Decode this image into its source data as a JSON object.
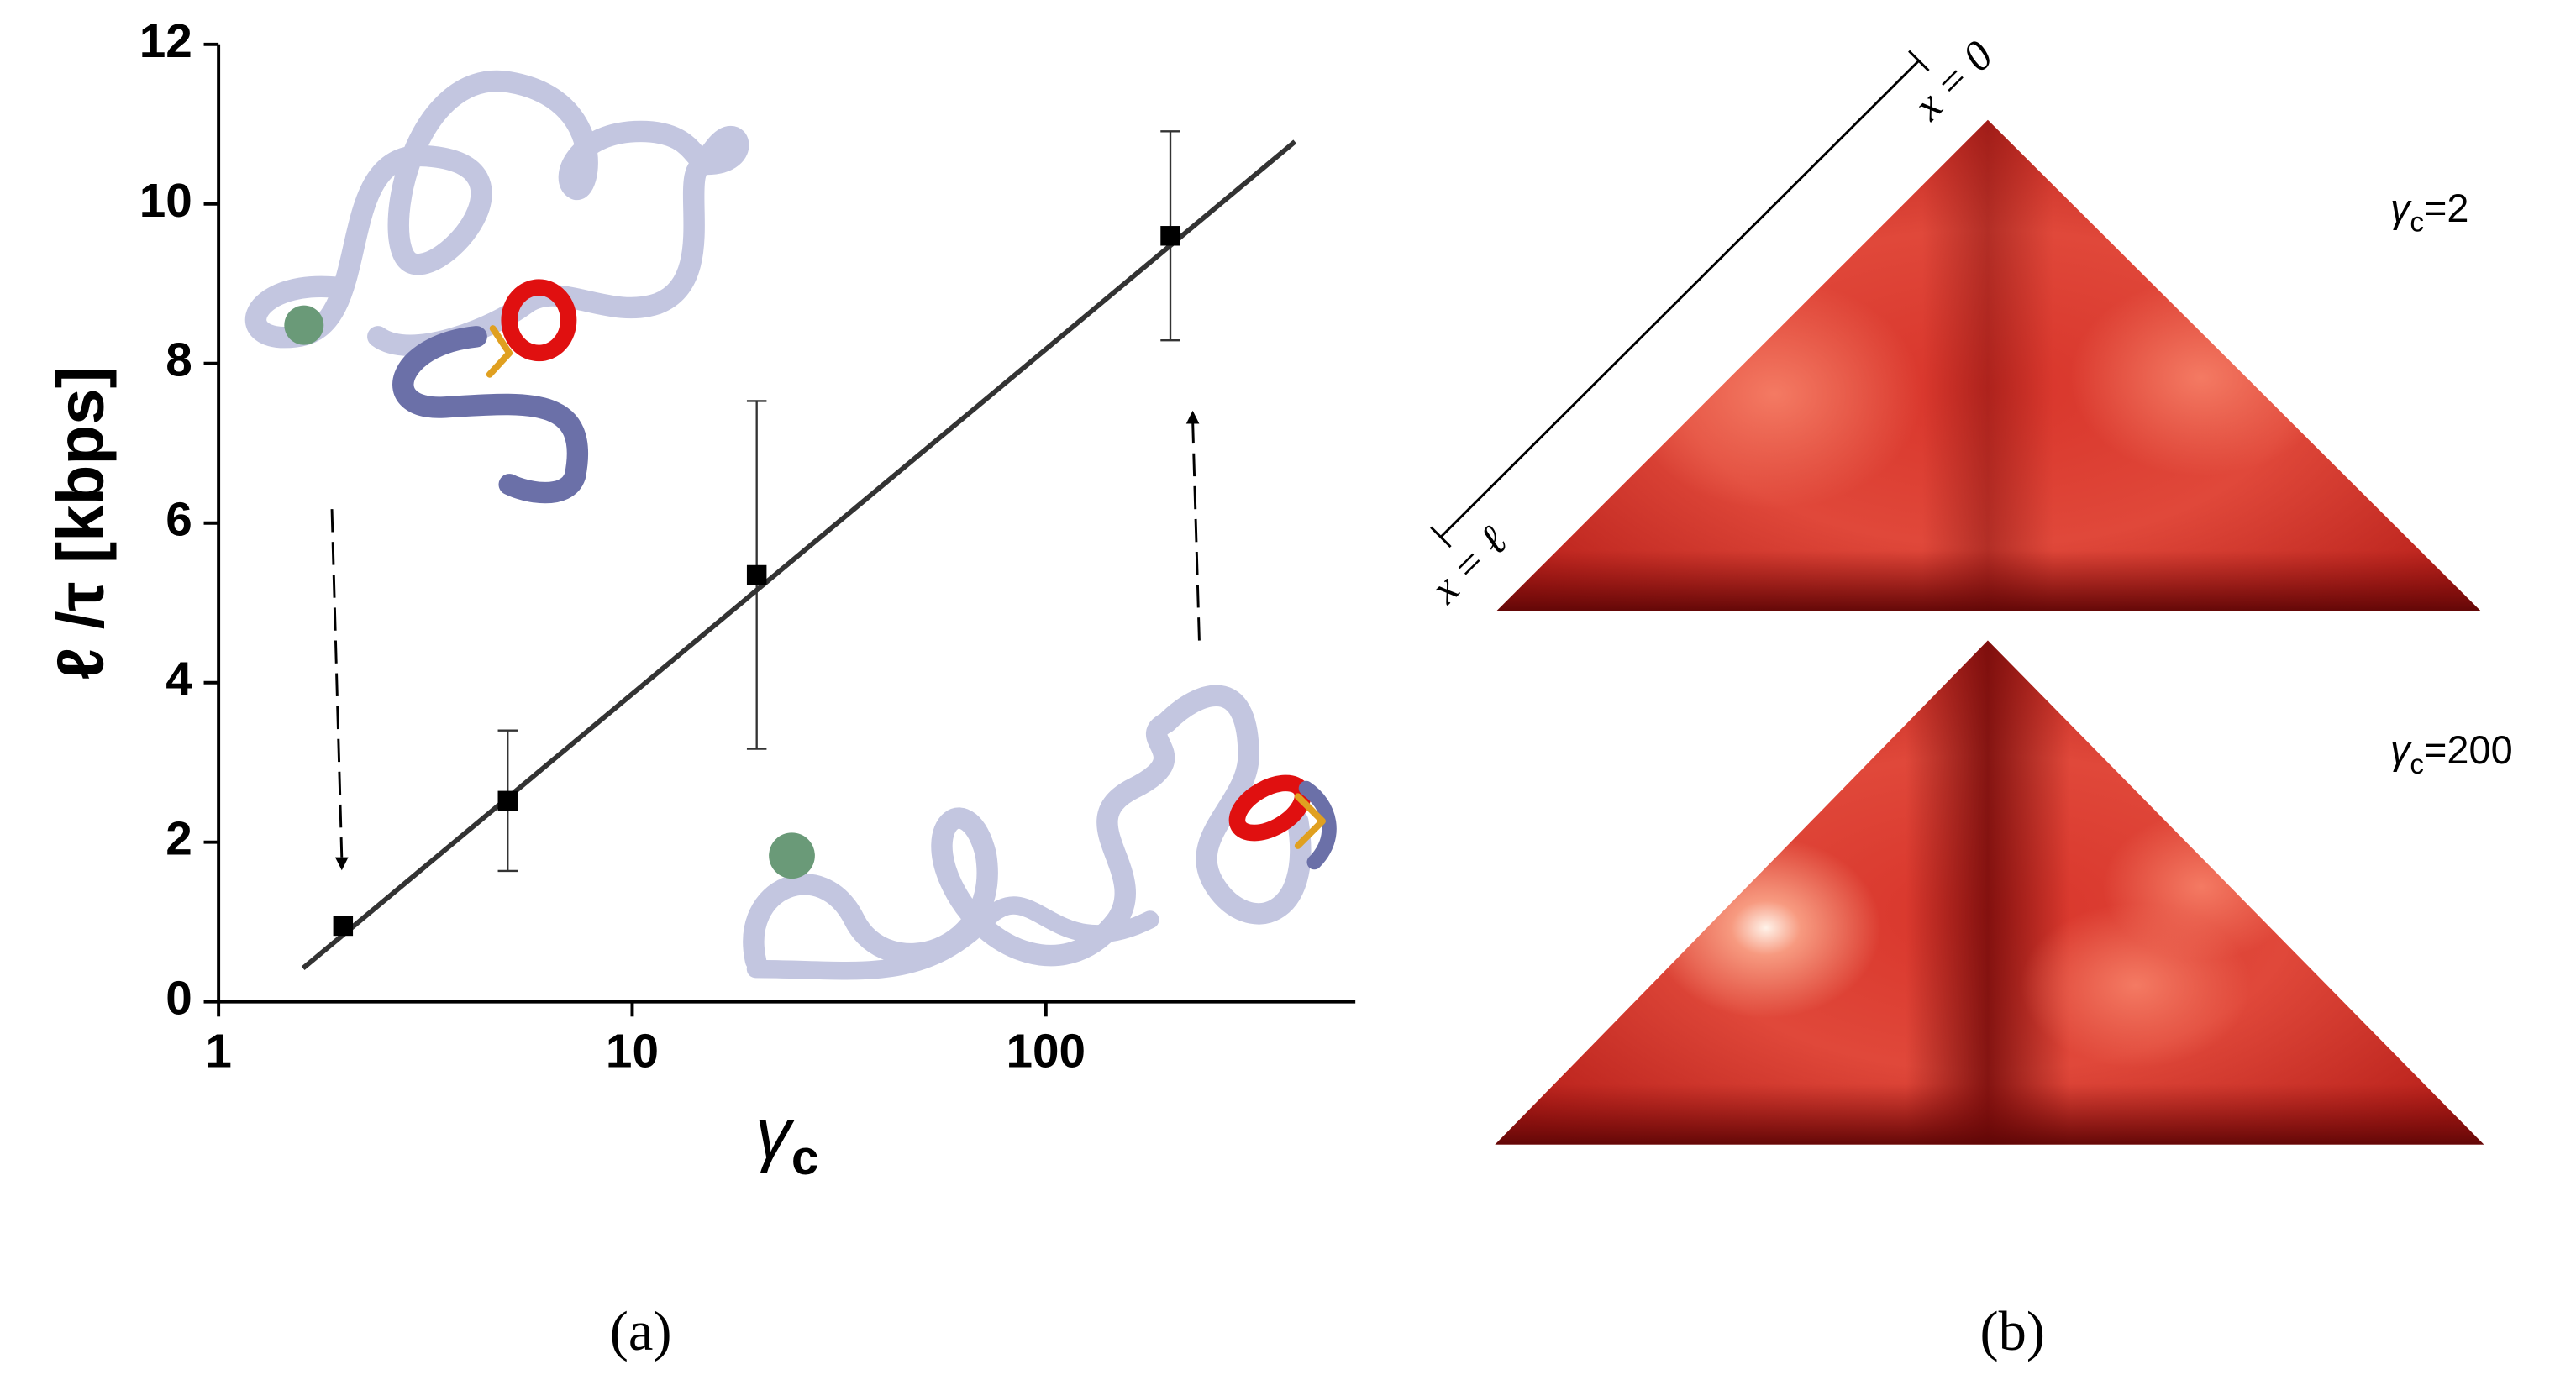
{
  "chart_data": {
    "type": "scatter",
    "x_label": {
      "symbol": "γ",
      "subscript": "c"
    },
    "y_label": "ℓ /τ [kbps]",
    "x": [
      2,
      5,
      20,
      200
    ],
    "values": [
      0.95,
      2.52,
      5.35,
      9.6
    ],
    "errors": [
      0,
      0.88,
      2.18,
      1.31
    ],
    "fit": {
      "x": [
        1.6,
        400
      ],
      "values": [
        0.42,
        10.78
      ]
    },
    "xlim": [
      1,
      560
    ],
    "ylim": [
      0,
      12
    ],
    "xticks": [
      1,
      10,
      100
    ],
    "yticks": [
      0,
      2,
      4,
      6,
      8,
      10,
      12
    ],
    "xscale": "log",
    "color": "#000000",
    "fit_color": "#333333"
  },
  "panel_b": {
    "axis_labels": [
      "x = 0",
      "x = ℓ"
    ],
    "heatmaps": [
      {
        "symbol": "γ",
        "subscript": "c",
        "text": "=2"
      },
      {
        "symbol": "γ",
        "subscript": "c",
        "text": "=200"
      }
    ]
  },
  "panel_labels": [
    "(a)",
    "(b)"
  ]
}
